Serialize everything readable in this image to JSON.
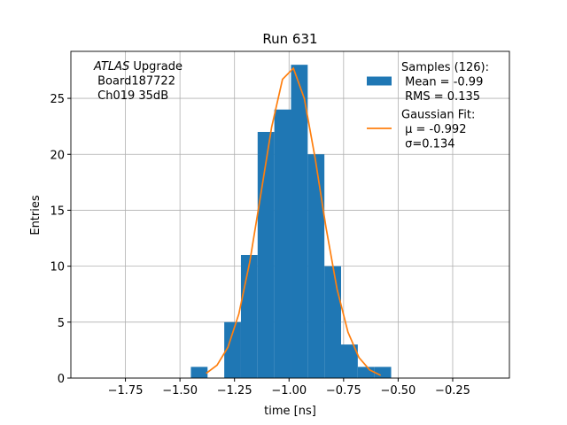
{
  "chart_data": {
    "type": "histogram",
    "title": "Run 631",
    "xlabel": "time [ns]",
    "ylabel": "Entries",
    "annotation": [
      [
        "ATLAS",
        " Upgrade"
      ],
      [
        " Board187722"
      ],
      [
        " Ch019 35dB"
      ]
    ],
    "xlim": [
      -2.0,
      0.01
    ],
    "ylim": [
      0,
      29.2
    ],
    "xticks": [
      {
        "value": -1.75,
        "label": "−1.75"
      },
      {
        "value": -1.5,
        "label": "−1.50"
      },
      {
        "value": -1.25,
        "label": "−1.25"
      },
      {
        "value": -1.0,
        "label": "−1.00"
      },
      {
        "value": -0.75,
        "label": "−0.75"
      },
      {
        "value": -0.5,
        "label": "−0.50"
      },
      {
        "value": -0.25,
        "label": "−0.25"
      }
    ],
    "yticks": [
      0,
      5,
      10,
      15,
      20,
      25
    ],
    "grid": true,
    "legend": "upper right",
    "series": [
      {
        "name": "Samples (126):\n Mean = -0.99\n RMS = 0.135",
        "type": "histogram",
        "color": "#1f77b4",
        "bins": [
          -1.45,
          -1.3735,
          -1.297,
          -1.2205,
          -1.144,
          -1.0675,
          -0.991,
          -0.9145,
          -0.838,
          -0.7615,
          -0.685,
          -0.6085,
          -0.532
        ],
        "values": [
          1,
          0,
          5,
          11,
          22,
          24,
          28,
          20,
          10,
          3,
          1,
          1
        ]
      },
      {
        "name": "Gaussian Fit:\n μ = -0.992\n σ=0.134",
        "type": "line",
        "color": "#ff7f0e",
        "x": [
          -1.38,
          -1.33,
          -1.28,
          -1.23,
          -1.18,
          -1.13,
          -1.08,
          -1.03,
          -0.98,
          -0.93,
          -0.88,
          -0.83,
          -0.78,
          -0.73,
          -0.68,
          -0.63,
          -0.58
        ],
        "values": [
          0.42,
          1.15,
          2.76,
          5.74,
          10.39,
          16.36,
          22.41,
          26.7,
          27.69,
          24.98,
          19.6,
          13.39,
          7.95,
          4.11,
          1.85,
          0.72,
          0.25
        ]
      }
    ]
  }
}
